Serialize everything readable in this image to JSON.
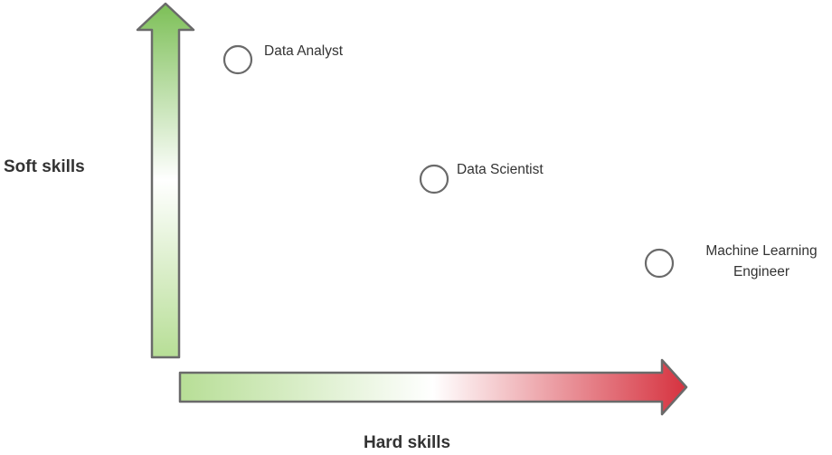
{
  "axes": {
    "vertical_label": "Soft skills",
    "horizontal_label": "Hard skills"
  },
  "colors": {
    "soft_arrow_dark": "#7cbf56",
    "soft_arrow_light": "#ffffff",
    "hard_arrow_green": "#b7de96",
    "hard_arrow_red": "#d6323f",
    "outline": "#6a6a6a",
    "text": "#333333"
  },
  "roles": [
    {
      "name": "Data Analyst",
      "lines": [
        "Data Analyst"
      ]
    },
    {
      "name": "Data Scientist",
      "lines": [
        "Data Scientist"
      ]
    },
    {
      "name": "Machine Learning Engineer",
      "lines": [
        "Machine Learning",
        "Engineer"
      ]
    }
  ]
}
